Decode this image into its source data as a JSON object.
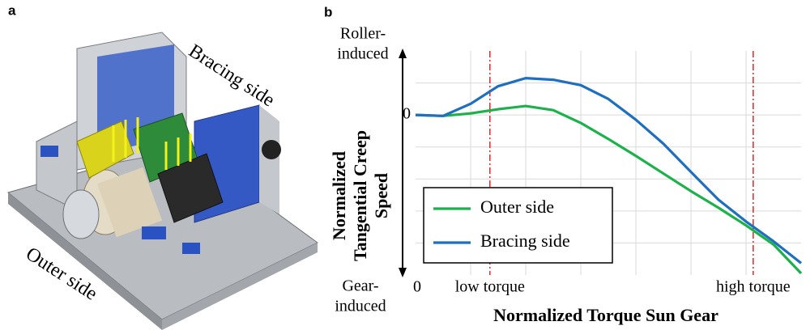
{
  "panel_a": {
    "label": "a",
    "annotations": [
      "Bracing side",
      "Outer side"
    ]
  },
  "chart_data": {
    "type": "line",
    "panel_label": "b",
    "ylabel": [
      "Normalized",
      "Tangential Creep",
      "Speed"
    ],
    "xlabel": "Normalized Torque Sun Gear",
    "y_top_annotation": [
      "Roller-",
      "induced"
    ],
    "y_bottom_annotation": [
      "Gear-",
      "induced"
    ],
    "x": [
      0,
      0.5,
      1,
      1.5,
      2,
      2.5,
      3,
      3.5,
      4,
      4.5,
      5,
      5.5,
      6,
      6.5,
      7
    ],
    "series": [
      {
        "name": "Outer side",
        "color": "#1db14b",
        "values": [
          0,
          -0.03,
          0.05,
          0.18,
          0.28,
          0.15,
          -0.25,
          -0.75,
          -1.28,
          -1.83,
          -2.38,
          -2.9,
          -3.45,
          -4.05,
          -4.95
        ]
      },
      {
        "name": "Bracing side",
        "color": "#1f6fc1",
        "values": [
          0,
          -0.03,
          0.35,
          0.9,
          1.15,
          1.1,
          0.93,
          0.5,
          -0.15,
          -0.9,
          -1.78,
          -2.65,
          -3.33,
          -3.95,
          -4.63
        ]
      }
    ],
    "xlim": [
      0,
      7
    ],
    "ylim": [
      -5,
      2
    ],
    "xticks": [
      0,
      {
        "value": 1.35,
        "label": "low torque"
      },
      {
        "value": 6.13,
        "label": "high torque"
      }
    ],
    "yticks": [
      0
    ],
    "xgrid": [
      1,
      2,
      3,
      4,
      5,
      6
    ],
    "ygrid": [
      1,
      -1,
      -2,
      -3,
      -4
    ],
    "marker_lines_color": "#e0262a",
    "legend": "lower left",
    "grid": true
  }
}
